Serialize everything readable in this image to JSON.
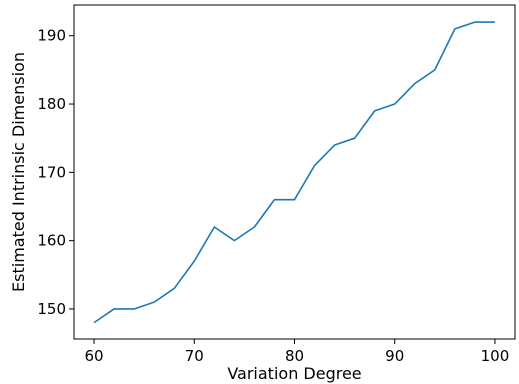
{
  "chart_data": {
    "type": "line",
    "title": "",
    "xlabel": "Variation Degree",
    "ylabel": "Estimated Intrinsic Dimension",
    "xlim": [
      58,
      102
    ],
    "ylim": [
      145.6,
      194.5
    ],
    "xticks": [
      60,
      70,
      80,
      90,
      100
    ],
    "yticks": [
      150,
      160,
      170,
      180,
      190
    ],
    "xtick_labels": [
      "60",
      "70",
      "80",
      "90",
      "100"
    ],
    "ytick_labels": [
      "150",
      "160",
      "170",
      "180",
      "190"
    ],
    "grid": false,
    "legend": "none",
    "line_color": "#1f77b4",
    "series": [
      {
        "x": [
          60,
          62,
          64,
          66,
          68,
          70,
          72,
          74,
          76,
          78,
          80,
          82,
          84,
          86,
          88,
          90,
          92,
          94,
          96,
          98,
          100
        ],
        "values": [
          148,
          150,
          150,
          151,
          153,
          157,
          162,
          160,
          162,
          166,
          166,
          171,
          174,
          175,
          179,
          180,
          183,
          185,
          191,
          192,
          192
        ]
      }
    ]
  }
}
